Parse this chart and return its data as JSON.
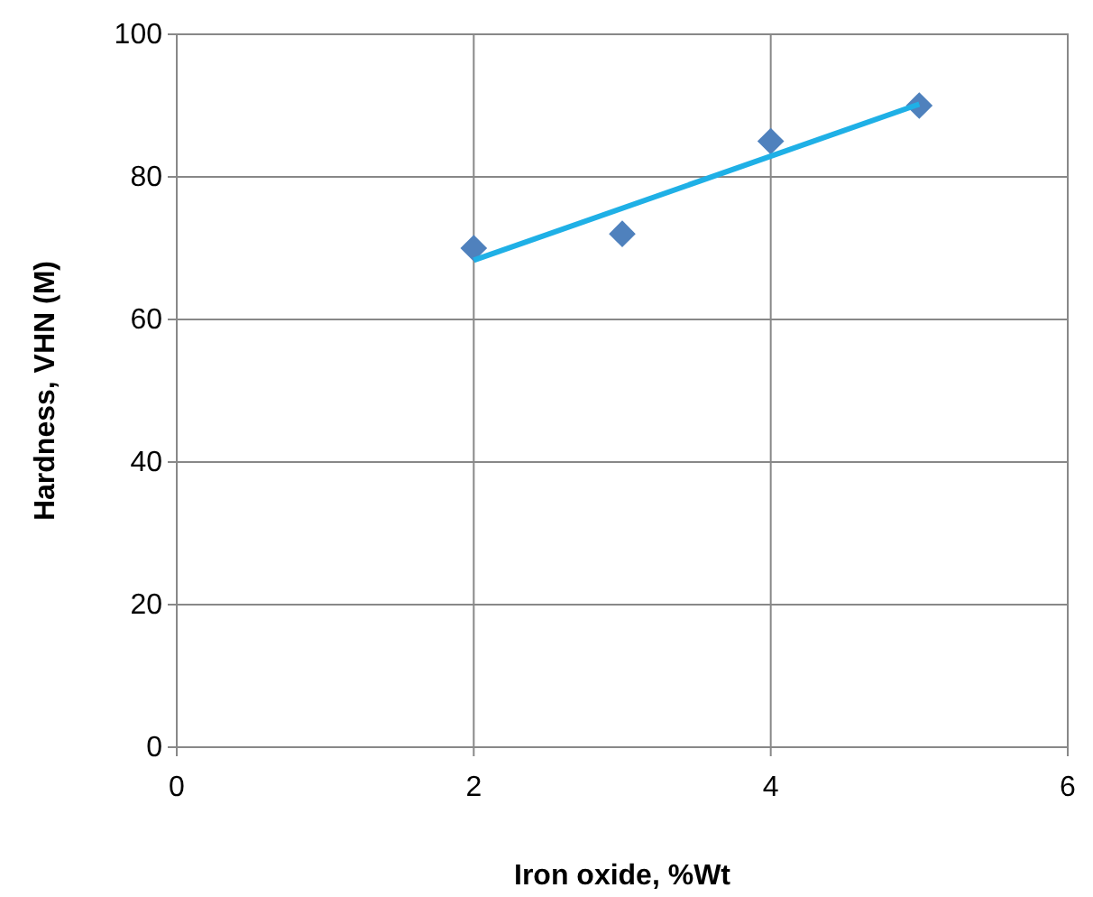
{
  "chart_data": {
    "type": "scatter",
    "xlabel": "Iron oxide, %Wt",
    "ylabel": "Hardness, VHN (M)",
    "series": [
      {
        "color": "#4f81bd",
        "marker": "diamond",
        "x": [
          2,
          3,
          4,
          5
        ],
        "values": [
          70,
          72,
          85,
          90
        ]
      },
      {
        "type": "line",
        "color": "#1fb0e6",
        "marker": "none",
        "line_style": "solid",
        "x": [
          2,
          5
        ],
        "values": [
          68.3,
          90.2
        ]
      }
    ],
    "xlim": [
      0,
      6
    ],
    "xticks": [
      0,
      2,
      4,
      6
    ],
    "ylim": [
      0,
      100
    ],
    "yticks": [
      0,
      20,
      40,
      60,
      80,
      100
    ],
    "grid": true
  }
}
